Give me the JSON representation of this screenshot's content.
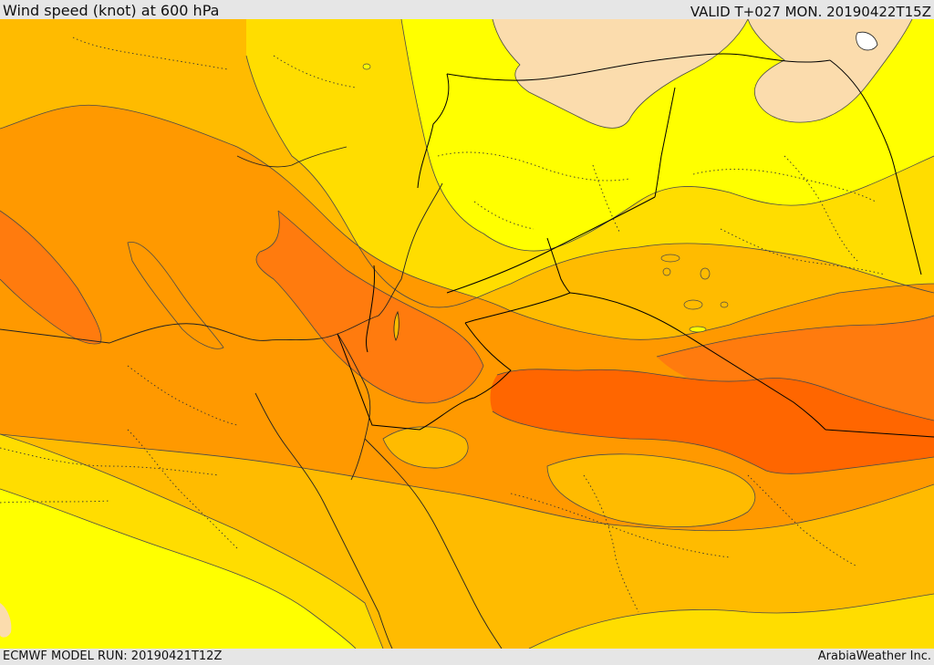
{
  "header": {
    "title": "Wind speed (knot) at 600 hPa",
    "valid": "VALID T+027 MON. 20190422T15Z"
  },
  "footer": {
    "model_run": "ECMWF MODEL RUN: 20190421T12Z",
    "brand": "ArabiaWeather Inc."
  },
  "colors": {
    "band_peach": "#fbdcad",
    "band_yellow": "#ffff00",
    "band_gold": "#ffdd00",
    "band_amber": "#ffbb00",
    "band_orange": "#ff9900",
    "band_dark_orange": "#ff7b0e",
    "band_red_orange": "#ff6600",
    "contour": "#4a4a4a",
    "border": "#000000"
  }
}
